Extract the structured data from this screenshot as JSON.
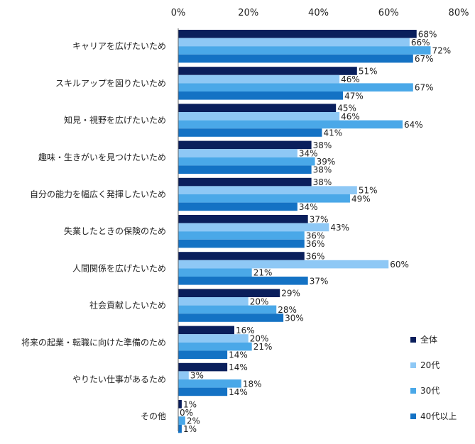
{
  "chart_data": {
    "type": "bar",
    "orientation": "horizontal",
    "categories": [
      "キャリアを広げたいため",
      "スキルアップを図りたいため",
      "知見・視野を広げたいため",
      "趣味・生きがいを見つけたいため",
      "自分の能力を幅広く発揮したいため",
      "失業したときの保険のため",
      "人間関係を広げたいため",
      "社会貢献したいため",
      "将来の起業・転職に向けた準備のため",
      "やりたい仕事があるため",
      "その他"
    ],
    "series": [
      {
        "name": "全体",
        "color": "#0a1f5c",
        "values": [
          68,
          51,
          45,
          38,
          38,
          37,
          36,
          29,
          16,
          14,
          1
        ]
      },
      {
        "name": "20代",
        "color": "#8ec8f5",
        "values": [
          66,
          46,
          46,
          34,
          51,
          43,
          60,
          20,
          20,
          3,
          0
        ]
      },
      {
        "name": "30代",
        "color": "#4aa8e8",
        "values": [
          72,
          67,
          64,
          39,
          49,
          36,
          21,
          28,
          21,
          18,
          2
        ]
      },
      {
        "name": "40代以上",
        "color": "#1472c4",
        "values": [
          67,
          47,
          41,
          38,
          34,
          36,
          37,
          30,
          14,
          14,
          1
        ]
      }
    ],
    "xlim": [
      0,
      80
    ],
    "xticks": [
      "0%",
      "20%",
      "40%",
      "60%",
      "80%"
    ],
    "value_suffix": "%",
    "grid": false,
    "legend_position": "bottom-right"
  }
}
